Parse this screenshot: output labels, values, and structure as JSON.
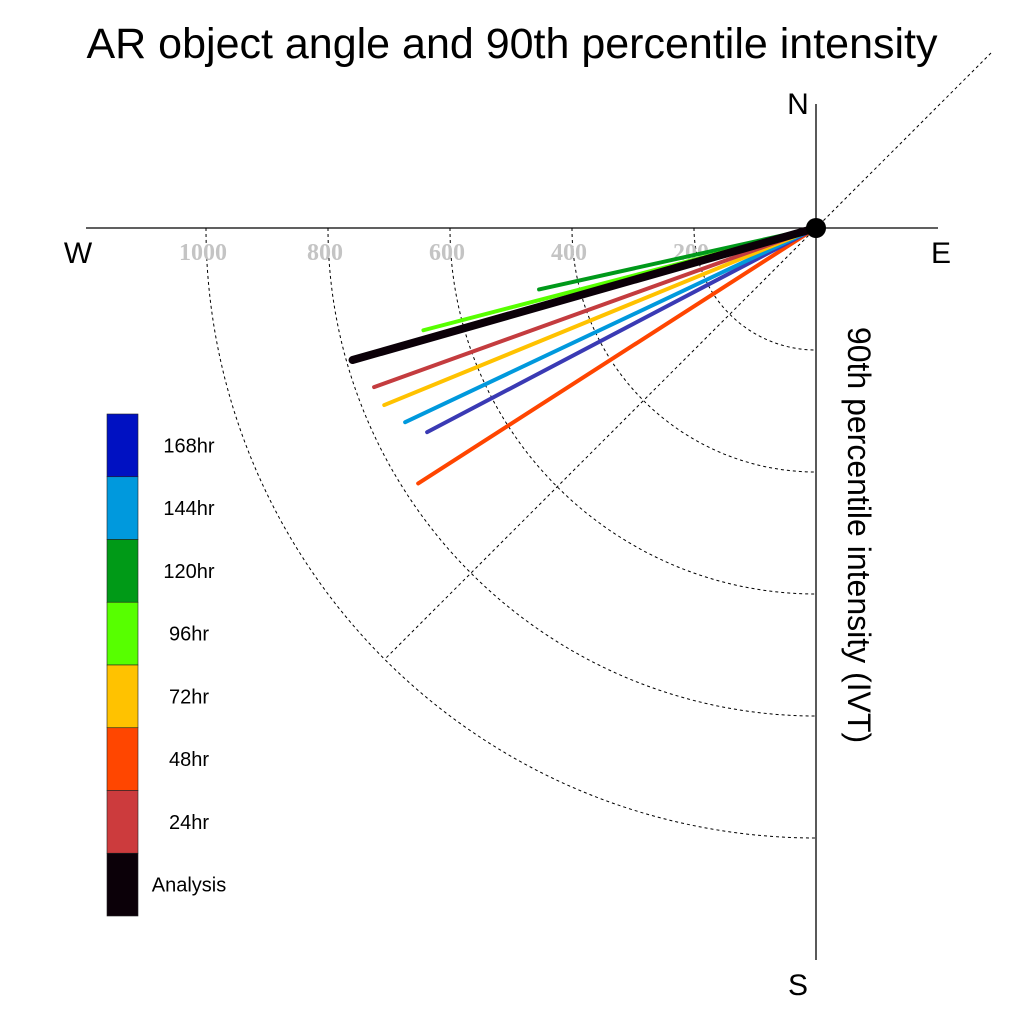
{
  "chart_data": {
    "type": "polar-line",
    "title": "AR object angle and 90th percentile intensity",
    "radial_label": "90th percentile intensity (IVT)",
    "directions": {
      "north": "N",
      "south": "S",
      "east": "E",
      "west": "W"
    },
    "radial_ticks": [
      1000,
      800,
      600,
      400,
      200
    ],
    "radial_rings": [
      200,
      400,
      600,
      800,
      1000
    ],
    "legend_placement": "bottom-left",
    "series": [
      {
        "name": "Analysis",
        "intensity": 790,
        "angle_deg_below_west": 15.9,
        "color": "#0b0008"
      },
      {
        "name": "24hr",
        "intensity": 770,
        "angle_deg_below_west": 19.8,
        "color": "#c43c3f"
      },
      {
        "name": "48hr",
        "intensity": 775,
        "angle_deg_below_west": 32.7,
        "color": "#ff4500"
      },
      {
        "name": "72hr",
        "intensity": 765,
        "angle_deg_below_west": 22.3,
        "color": "#ffc200"
      },
      {
        "name": "96hr",
        "intensity": 665,
        "angle_deg_below_west": 14.6,
        "color": "#57ff00"
      },
      {
        "name": "120hr",
        "intensity": 465,
        "angle_deg_below_west": 12.5,
        "color": "#00991a"
      },
      {
        "name": "144hr",
        "intensity": 745,
        "angle_deg_below_west": 25.3,
        "color": "#0099dd"
      },
      {
        "name": "168hr",
        "intensity": 720,
        "angle_deg_below_west": 27.7,
        "color": "#3a3ab4"
      }
    ],
    "legend": [
      {
        "label": "168hr",
        "color": "#0011c2"
      },
      {
        "label": "144hr",
        "color": "#0099dd"
      },
      {
        "label": "120hr",
        "color": "#009a17"
      },
      {
        "label": "96hr",
        "color": "#57ff00"
      },
      {
        "label": "72hr",
        "color": "#ffc200"
      },
      {
        "label": "48hr",
        "color": "#ff4600"
      },
      {
        "label": "24hr",
        "color": "#cc3b3d"
      },
      {
        "label": "Analysis",
        "color": "#0b0008"
      }
    ]
  }
}
